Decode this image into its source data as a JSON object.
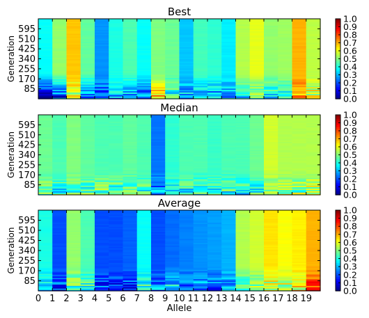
{
  "chart_data": [
    {
      "type": "heatmap",
      "title": "Best",
      "xlabel": "",
      "ylabel": "Generation",
      "ytick_labels": [
        "595",
        "510",
        "425",
        "340",
        "255",
        "170",
        "85"
      ],
      "ytick_values": [
        595,
        510,
        425,
        340,
        255,
        170,
        85
      ],
      "ylim": [
        0,
        680
      ],
      "xlim": [
        0,
        20
      ],
      "colorbar": {
        "min": 0.0,
        "max": 1.0,
        "tick_labels": [
          "1.0",
          "0.9",
          "0.8",
          "0.7",
          "0.6",
          "0.5",
          "0.4",
          "0.3",
          "0.2",
          "0.1",
          "0.0"
        ]
      },
      "columns": [
        {
          "allele": 0,
          "steady": 0.38,
          "bottom": 0.1
        },
        {
          "allele": 1,
          "steady": 0.52,
          "bottom": 0.15
        },
        {
          "allele": 2,
          "steady": 0.68,
          "bottom": 0.55
        },
        {
          "allele": 3,
          "steady": 0.47,
          "bottom": 0.2
        },
        {
          "allele": 4,
          "steady": 0.27,
          "bottom": 0.2
        },
        {
          "allele": 5,
          "steady": 0.4,
          "bottom": 0.3
        },
        {
          "allele": 6,
          "steady": 0.45,
          "bottom": 0.25
        },
        {
          "allele": 7,
          "steady": 0.38,
          "bottom": 0.2
        },
        {
          "allele": 8,
          "steady": 0.5,
          "bottom": 0.7
        },
        {
          "allele": 9,
          "steady": 0.48,
          "bottom": 0.4
        },
        {
          "allele": 10,
          "steady": 0.32,
          "bottom": 0.3
        },
        {
          "allele": 11,
          "steady": 0.44,
          "bottom": 0.3
        },
        {
          "allele": 12,
          "steady": 0.42,
          "bottom": 0.25
        },
        {
          "allele": 13,
          "steady": 0.36,
          "bottom": 0.25
        },
        {
          "allele": 14,
          "steady": 0.55,
          "bottom": 0.35
        },
        {
          "allele": 15,
          "steady": 0.6,
          "bottom": 0.4
        },
        {
          "allele": 16,
          "steady": 0.52,
          "bottom": 0.35
        },
        {
          "allele": 17,
          "steady": 0.53,
          "bottom": 0.4
        },
        {
          "allele": 18,
          "steady": 0.7,
          "bottom": 0.7
        },
        {
          "allele": 19,
          "steady": 0.56,
          "bottom": 0.6
        }
      ]
    },
    {
      "type": "heatmap",
      "title": "Median",
      "xlabel": "",
      "ylabel": "Generation",
      "ytick_labels": [
        "595",
        "510",
        "425",
        "340",
        "255",
        "170",
        "85"
      ],
      "ytick_values": [
        595,
        510,
        425,
        340,
        255,
        170,
        85
      ],
      "ylim": [
        0,
        680
      ],
      "xlim": [
        0,
        20
      ],
      "colorbar": {
        "min": 0.0,
        "max": 1.0,
        "tick_labels": [
          "1.0",
          "0.9",
          "0.8",
          "0.7",
          "0.6",
          "0.5",
          "0.4",
          "0.3",
          "0.2",
          "0.1",
          "0.0"
        ]
      },
      "columns": [
        {
          "allele": 0,
          "steady": 0.48,
          "bottom": 0.45
        },
        {
          "allele": 1,
          "steady": 0.45,
          "bottom": 0.4
        },
        {
          "allele": 2,
          "steady": 0.5,
          "bottom": 0.45
        },
        {
          "allele": 3,
          "steady": 0.47,
          "bottom": 0.45
        },
        {
          "allele": 4,
          "steady": 0.45,
          "bottom": 0.5
        },
        {
          "allele": 5,
          "steady": 0.45,
          "bottom": 0.45
        },
        {
          "allele": 6,
          "steady": 0.47,
          "bottom": 0.45
        },
        {
          "allele": 7,
          "steady": 0.45,
          "bottom": 0.45
        },
        {
          "allele": 8,
          "steady": 0.24,
          "bottom": 0.25
        },
        {
          "allele": 9,
          "steady": 0.42,
          "bottom": 0.4
        },
        {
          "allele": 10,
          "steady": 0.45,
          "bottom": 0.4
        },
        {
          "allele": 11,
          "steady": 0.45,
          "bottom": 0.4
        },
        {
          "allele": 12,
          "steady": 0.43,
          "bottom": 0.4
        },
        {
          "allele": 13,
          "steady": 0.45,
          "bottom": 0.4
        },
        {
          "allele": 14,
          "steady": 0.45,
          "bottom": 0.38
        },
        {
          "allele": 15,
          "steady": 0.48,
          "bottom": 0.4
        },
        {
          "allele": 16,
          "steady": 0.58,
          "bottom": 0.5
        },
        {
          "allele": 17,
          "steady": 0.55,
          "bottom": 0.5
        },
        {
          "allele": 18,
          "steady": 0.55,
          "bottom": 0.5
        },
        {
          "allele": 19,
          "steady": 0.55,
          "bottom": 0.55
        }
      ]
    },
    {
      "type": "heatmap",
      "title": "Average",
      "xlabel": "Allele",
      "ylabel": "Generation",
      "xtick_labels": [
        "0",
        "1",
        "2",
        "3",
        "4",
        "5",
        "6",
        "7",
        "8",
        "9",
        "10",
        "11",
        "12",
        "13",
        "14",
        "15",
        "16",
        "17",
        "18",
        "19"
      ],
      "ytick_labels": [
        "595",
        "510",
        "425",
        "340",
        "255",
        "170",
        "85"
      ],
      "ytick_values": [
        595,
        510,
        425,
        340,
        255,
        170,
        85
      ],
      "ylim": [
        0,
        680
      ],
      "xlim": [
        0,
        20
      ],
      "colorbar": {
        "min": 0.0,
        "max": 1.0,
        "tick_labels": [
          "1.0",
          "0.9",
          "0.8",
          "0.7",
          "0.6",
          "0.5",
          "0.4",
          "0.3",
          "0.2",
          "0.1",
          "0.0"
        ]
      },
      "columns": [
        {
          "allele": 0,
          "steady": 0.4,
          "bottom": 0.3
        },
        {
          "allele": 1,
          "steady": 0.2,
          "bottom": 0.2
        },
        {
          "allele": 2,
          "steady": 0.52,
          "bottom": 0.45
        },
        {
          "allele": 3,
          "steady": 0.45,
          "bottom": 0.4
        },
        {
          "allele": 4,
          "steady": 0.2,
          "bottom": 0.2
        },
        {
          "allele": 5,
          "steady": 0.2,
          "bottom": 0.2
        },
        {
          "allele": 6,
          "steady": 0.22,
          "bottom": 0.2
        },
        {
          "allele": 7,
          "steady": 0.38,
          "bottom": 0.4
        },
        {
          "allele": 8,
          "steady": 0.2,
          "bottom": 0.25
        },
        {
          "allele": 9,
          "steady": 0.23,
          "bottom": 0.35
        },
        {
          "allele": 10,
          "steady": 0.25,
          "bottom": 0.25
        },
        {
          "allele": 11,
          "steady": 0.27,
          "bottom": 0.25
        },
        {
          "allele": 12,
          "steady": 0.28,
          "bottom": 0.25
        },
        {
          "allele": 13,
          "steady": 0.3,
          "bottom": 0.3
        },
        {
          "allele": 14,
          "steady": 0.55,
          "bottom": 0.4
        },
        {
          "allele": 15,
          "steady": 0.58,
          "bottom": 0.45
        },
        {
          "allele": 16,
          "steady": 0.65,
          "bottom": 0.55
        },
        {
          "allele": 17,
          "steady": 0.62,
          "bottom": 0.55
        },
        {
          "allele": 18,
          "steady": 0.64,
          "bottom": 0.6
        },
        {
          "allele": 19,
          "steady": 0.7,
          "bottom": 0.8
        }
      ]
    }
  ]
}
